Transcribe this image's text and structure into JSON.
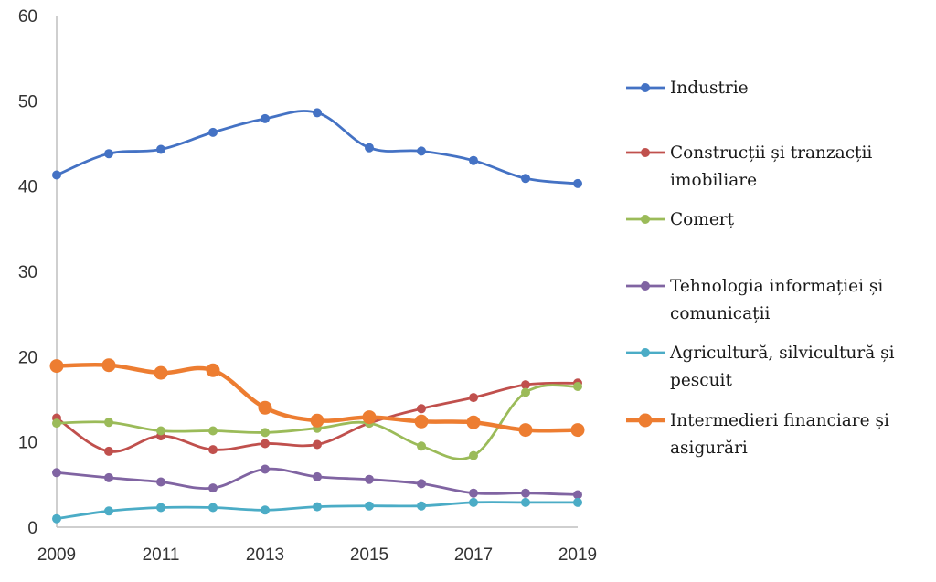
{
  "chart_data": {
    "type": "line",
    "x": [
      2009,
      2010,
      2011,
      2012,
      2013,
      2014,
      2015,
      2016,
      2017,
      2018,
      2019
    ],
    "ylim": [
      0,
      60
    ],
    "yticks": [
      "0",
      "10",
      "20",
      "30",
      "40",
      "50",
      "60"
    ],
    "xticks": [
      "2009",
      "2011",
      "2013",
      "2015",
      "2017",
      "2019"
    ],
    "grid": false,
    "legend_position": "right",
    "series": [
      {
        "name": "Industrie",
        "color": "#4472C4",
        "values": [
          41.3,
          43.8,
          44.3,
          46.3,
          47.9,
          48.6,
          44.5,
          44.1,
          43.0,
          40.9,
          40.3
        ]
      },
      {
        "name": "Construcții și tranzacții imobiliare",
        "legend_lines": [
          "Construcții și tranzacții",
          "imobiliare"
        ],
        "color": "#C0504D",
        "values": [
          12.8,
          8.9,
          10.7,
          9.1,
          9.8,
          9.7,
          12.2,
          13.9,
          15.2,
          16.7,
          16.9
        ]
      },
      {
        "name": "Comerț",
        "legend_lines": [
          "Comerț"
        ],
        "color": "#9BBB59",
        "values": [
          12.2,
          12.3,
          11.3,
          11.3,
          11.1,
          11.6,
          12.2,
          9.5,
          8.4,
          15.8,
          16.5
        ]
      },
      {
        "name": "Tehnologia informației și comunicații",
        "legend_lines": [
          "Tehnologia informației și",
          "comunicații"
        ],
        "color": "#8064A2",
        "values": [
          6.4,
          5.8,
          5.3,
          4.6,
          6.8,
          5.9,
          5.6,
          5.1,
          4.0,
          4.0,
          3.8
        ]
      },
      {
        "name": "Agricultură, silvicultură și pescuit",
        "legend_lines": [
          "Agricultură, silvicultură și",
          "pescuit"
        ],
        "color": "#4BACC6",
        "values": [
          1.0,
          1.9,
          2.3,
          2.3,
          2.0,
          2.4,
          2.5,
          2.5,
          2.9,
          2.9,
          2.9
        ]
      },
      {
        "name": "Intermedieri financiare și asigurări",
        "legend_lines": [
          "Intermedieri financiare și",
          "asigurări"
        ],
        "color": "#ED7D31",
        "values": [
          18.9,
          19.0,
          18.1,
          18.4,
          14.0,
          12.5,
          12.9,
          12.4,
          12.3,
          11.4,
          11.4
        ],
        "thick": true
      }
    ]
  }
}
